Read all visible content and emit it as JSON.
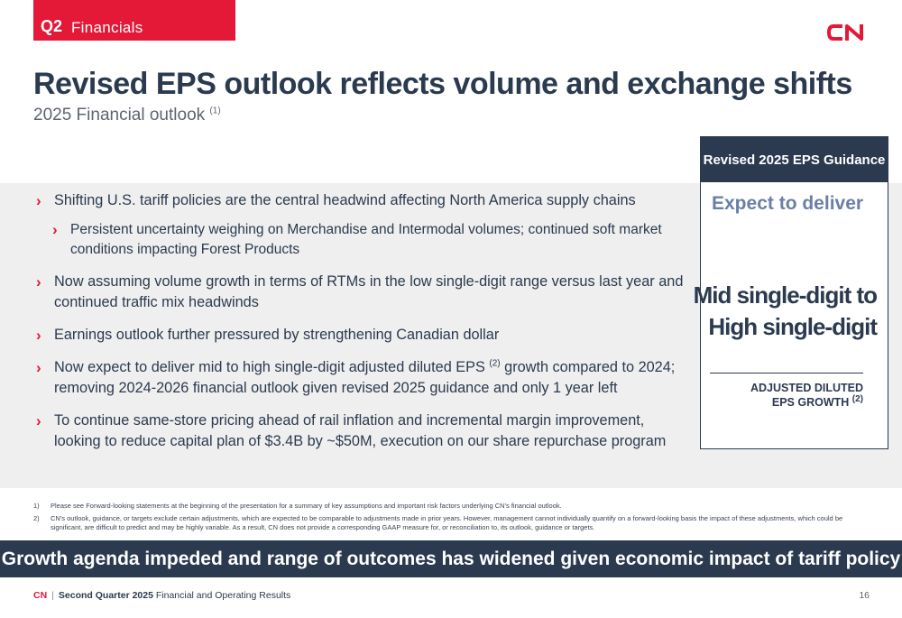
{
  "header": {
    "quarter": "Q2",
    "section": "Financials",
    "logo_text": "CN"
  },
  "title": "Revised EPS outlook reflects volume and exchange shifts",
  "subtitle": {
    "text": "2025 Financial outlook",
    "note": "(1)"
  },
  "bullets": [
    {
      "text": "Shifting U.S. tariff policies are the central headwind affecting North America supply chains"
    },
    {
      "text": "Persistent uncertainty weighing on Merchandise and Intermodal volumes; continued soft market conditions impacting Forest Products"
    },
    {
      "text": "Now assuming volume growth in terms of RTMs in the low single-digit range versus last year and continued traffic mix headwinds"
    },
    {
      "text": "Earnings outlook further pressured by strengthening Canadian dollar"
    },
    {
      "text_a": "Now expect to deliver mid to high single-digit adjusted diluted EPS",
      "note": "(2)",
      "text_b": " growth compared to 2024; removing 2024-2026 financial outlook given revised 2025 guidance and only 1 year left"
    },
    {
      "text": "To continue same-store pricing ahead of rail inflation and incremental margin improvement, looking to reduce capital plan of $3.4B by ~$50M, execution on our share repurchase program"
    }
  ],
  "card": {
    "header": "Revised 2025 EPS Guidance",
    "expect": "Expect to deliver",
    "line1": "Mid single-digit to",
    "line2": "High single-digit",
    "label1": "ADJUSTED DILUTED",
    "label2": "EPS GROWTH",
    "label_note": "(2)"
  },
  "footnotes": [
    {
      "num": "1)",
      "text": "Please see Forward-looking statements at the beginning of the presentation for a summary of key assumptions and important risk factors underlying CN's financial outlook."
    },
    {
      "num": "2)",
      "text": "CN's outlook, guidance, or targets exclude certain adjustments, which are expected to be comparable to adjustments made in prior years. However, management cannot individually quantify on a forward-looking basis the impact of these adjustments, which could be significant, are difficult to predict and may be highly variable. As a result, CN does not provide a corresponding GAAP measure for, or reconciliation to, its outlook, guidance or targets."
    }
  ],
  "banner": "Growth agenda impeded and range of outcomes has widened given economic impact of tariff policy",
  "footer": {
    "brand": "CN",
    "separator": "|",
    "bold_text": "Second Quarter 2025",
    "rest": " Financial and Operating Results",
    "page": "16"
  },
  "colors": {
    "red": "#e31937",
    "navy": "#2b3a4f",
    "band": "#efefef",
    "accent_blue": "#6a7fa5"
  }
}
